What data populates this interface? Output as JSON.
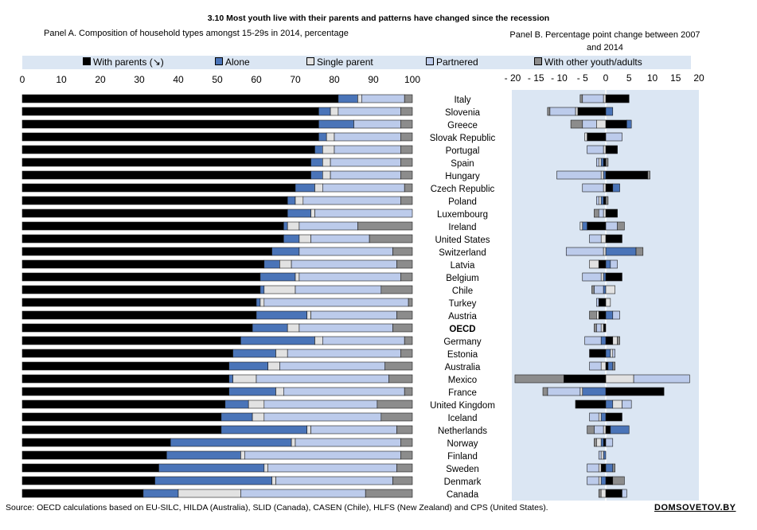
{
  "title": "3.10  Most youth live with their parents and patterns have changed since the recession",
  "source": "Source: OECD calculations based on EU-SILC, HILDA (Australia), SLID (Canada), CASEN (Chile), HLFS (New Zealand) and CPS (United States).",
  "watermark": "DOMSOVETOV.BY",
  "colors": {
    "parents": "#000000",
    "alone": "#4a74b8",
    "single_parent": "#e2e2e2",
    "partnered": "#bccbeb",
    "other": "#8c8c8c",
    "panel_background": "#dbe6f3"
  },
  "legend": [
    {
      "key": "parents",
      "label": "With parents (↘)"
    },
    {
      "key": "alone",
      "label": "Alone"
    },
    {
      "key": "single_parent",
      "label": "Single parent"
    },
    {
      "key": "partnered",
      "label": "Partnered"
    },
    {
      "key": "other",
      "label": "With other youth/adults"
    }
  ],
  "chart_data": [
    {
      "id": "panel-a",
      "type": "bar",
      "orientation": "horizontal",
      "stacked": true,
      "title": "Panel A. Composition of household types amongst 15-29s in 2014, percentage",
      "xlim": [
        0,
        100
      ],
      "xticks": [
        0,
        10,
        20,
        30,
        40,
        50,
        60,
        70,
        80,
        90,
        100
      ],
      "categories": [
        "Italy",
        "Slovenia",
        "Greece",
        "Slovak Republic",
        "Portugal",
        "Spain",
        "Hungary",
        "Czech Republic",
        "Poland",
        "Luxembourg",
        "Ireland",
        "United States",
        "Switzerland",
        "Latvia",
        "Belgium",
        "Chile",
        "Turkey",
        "Austria",
        "OECD",
        "Germany",
        "Estonia",
        "Australia",
        "Mexico",
        "France",
        "United Kingdom",
        "Iceland",
        "Netherlands",
        "Norway",
        "Finland",
        "Sweden",
        "Denmark",
        "Canada"
      ],
      "highlight_category": "OECD",
      "series": [
        {
          "key": "parents",
          "name": "With parents (↘)",
          "values": [
            81,
            76,
            76,
            76,
            75,
            74,
            74,
            70,
            68,
            68,
            67,
            67,
            64,
            62,
            61,
            61,
            60,
            60,
            59,
            56,
            54,
            53,
            53,
            53,
            52,
            51,
            51,
            38,
            37,
            35,
            34,
            31
          ]
        },
        {
          "key": "alone",
          "name": "Alone",
          "values": [
            5,
            3,
            9,
            2,
            2,
            3,
            3,
            5,
            2,
            6,
            1,
            4,
            7,
            4,
            9,
            1,
            1,
            13,
            9,
            19,
            11,
            10,
            1,
            12,
            6,
            8,
            22,
            31,
            19,
            27,
            30,
            9
          ]
        },
        {
          "key": "single_parent",
          "name": "Single parent",
          "values": [
            1,
            2,
            0,
            2,
            3,
            2,
            2,
            2,
            2,
            1,
            3,
            3,
            0,
            3,
            1,
            8,
            1,
            1,
            3,
            2,
            3,
            3,
            6,
            2,
            4,
            3,
            1,
            1,
            1,
            1,
            1,
            16
          ]
        },
        {
          "key": "partnered",
          "name": "Partnered",
          "values": [
            11,
            16,
            12,
            17,
            17,
            18,
            18,
            21,
            25,
            25,
            15,
            15,
            24,
            27,
            26,
            22,
            37,
            22,
            24,
            21,
            29,
            27,
            34,
            31,
            29,
            30,
            22,
            27,
            40,
            33,
            30,
            32
          ]
        },
        {
          "key": "other",
          "name": "With other youth/adults",
          "values": [
            2,
            3,
            3,
            3,
            3,
            3,
            3,
            2,
            3,
            0,
            14,
            11,
            5,
            4,
            3,
            8,
            1,
            4,
            5,
            2,
            3,
            7,
            6,
            2,
            9,
            8,
            4,
            3,
            3,
            4,
            5,
            12
          ]
        }
      ]
    },
    {
      "id": "panel-b",
      "type": "bar",
      "orientation": "horizontal",
      "stacked": true,
      "title": "Panel B. Percentage point change between 2007 and 2014",
      "xlim": [
        -20,
        20
      ],
      "xticks": [
        -20,
        -15,
        -10,
        -5,
        0,
        5,
        10,
        15,
        20
      ],
      "xtick_labels": [
        "- 20",
        "- 15",
        "- 10",
        "- 5",
        "0",
        "5",
        "10",
        "15",
        "20"
      ],
      "categories": [
        "Italy",
        "Slovenia",
        "Greece",
        "Slovak Republic",
        "Portugal",
        "Spain",
        "Hungary",
        "Czech Republic",
        "Poland",
        "Luxembourg",
        "Ireland",
        "United States",
        "Switzerland",
        "Latvia",
        "Belgium",
        "Chile",
        "Turkey",
        "Austria",
        "OECD",
        "Germany",
        "Estonia",
        "Australia",
        "Mexico",
        "France",
        "United Kingdom",
        "Iceland",
        "Netherlands",
        "Norway",
        "Finland",
        "Sweden",
        "Denmark",
        "Canada"
      ],
      "series": [
        {
          "key": "parents",
          "name": "With parents (↘)",
          "values": [
            5,
            -6,
            4.5,
            -4,
            2.5,
            -0.5,
            9,
            1.5,
            -0.5,
            2.5,
            -4,
            3.5,
            0,
            -1.5,
            3.5,
            0,
            -1.5,
            -1.5,
            -0.5,
            1.5,
            -3.5,
            0.5,
            -9,
            12.5,
            -6.5,
            3.5,
            1,
            -0.5,
            0,
            -1,
            1.5,
            3.5
          ]
        },
        {
          "key": "alone",
          "name": "Alone",
          "values": [
            0,
            1.5,
            1,
            0,
            0,
            -0.5,
            -0.5,
            1.5,
            -0.5,
            0,
            -1,
            0,
            6.5,
            1,
            -0.5,
            -0.5,
            0,
            1.5,
            0,
            -1,
            1,
            1,
            0,
            -5,
            1.5,
            -1,
            4,
            -0.5,
            -0.5,
            1.5,
            -1,
            0
          ]
        },
        {
          "key": "single_parent",
          "name": "Single parent",
          "values": [
            -0.5,
            -0.5,
            -2,
            -0.5,
            -0.5,
            -0.5,
            -0.5,
            -0.5,
            -0.5,
            -0.5,
            -0.5,
            -1,
            -0.5,
            -2,
            -0.5,
            2,
            1,
            -0.5,
            -0.5,
            1,
            0.5,
            -1,
            6,
            -0.5,
            2,
            -0.5,
            -0.5,
            -1,
            -0.5,
            -0.5,
            -0.5,
            -1
          ]
        },
        {
          "key": "partnered",
          "name": "Partnered",
          "values": [
            -4.5,
            -5.5,
            -3,
            3.5,
            -3.5,
            -0.5,
            -9.5,
            -4.5,
            -0.5,
            -1,
            2.5,
            -2.5,
            -8,
            1.5,
            -4,
            -2,
            -0.5,
            1.5,
            -1,
            -3.5,
            0.5,
            -2.5,
            12,
            -7,
            2,
            -2,
            -2,
            1.5,
            -0.5,
            -2.5,
            -2.5,
            1
          ]
        },
        {
          "key": "other",
          "name": "With other youth/adults",
          "values": [
            -0.5,
            -0.5,
            -2.5,
            0,
            0,
            0.5,
            0.5,
            0,
            0.5,
            -1,
            1.5,
            0,
            1.5,
            0,
            0,
            -0.5,
            0,
            -1.5,
            -0.5,
            0.5,
            0,
            0.5,
            -10.5,
            -1,
            0,
            0,
            -1.5,
            -0.5,
            0,
            0.5,
            2.5,
            -0.5
          ]
        }
      ]
    }
  ]
}
